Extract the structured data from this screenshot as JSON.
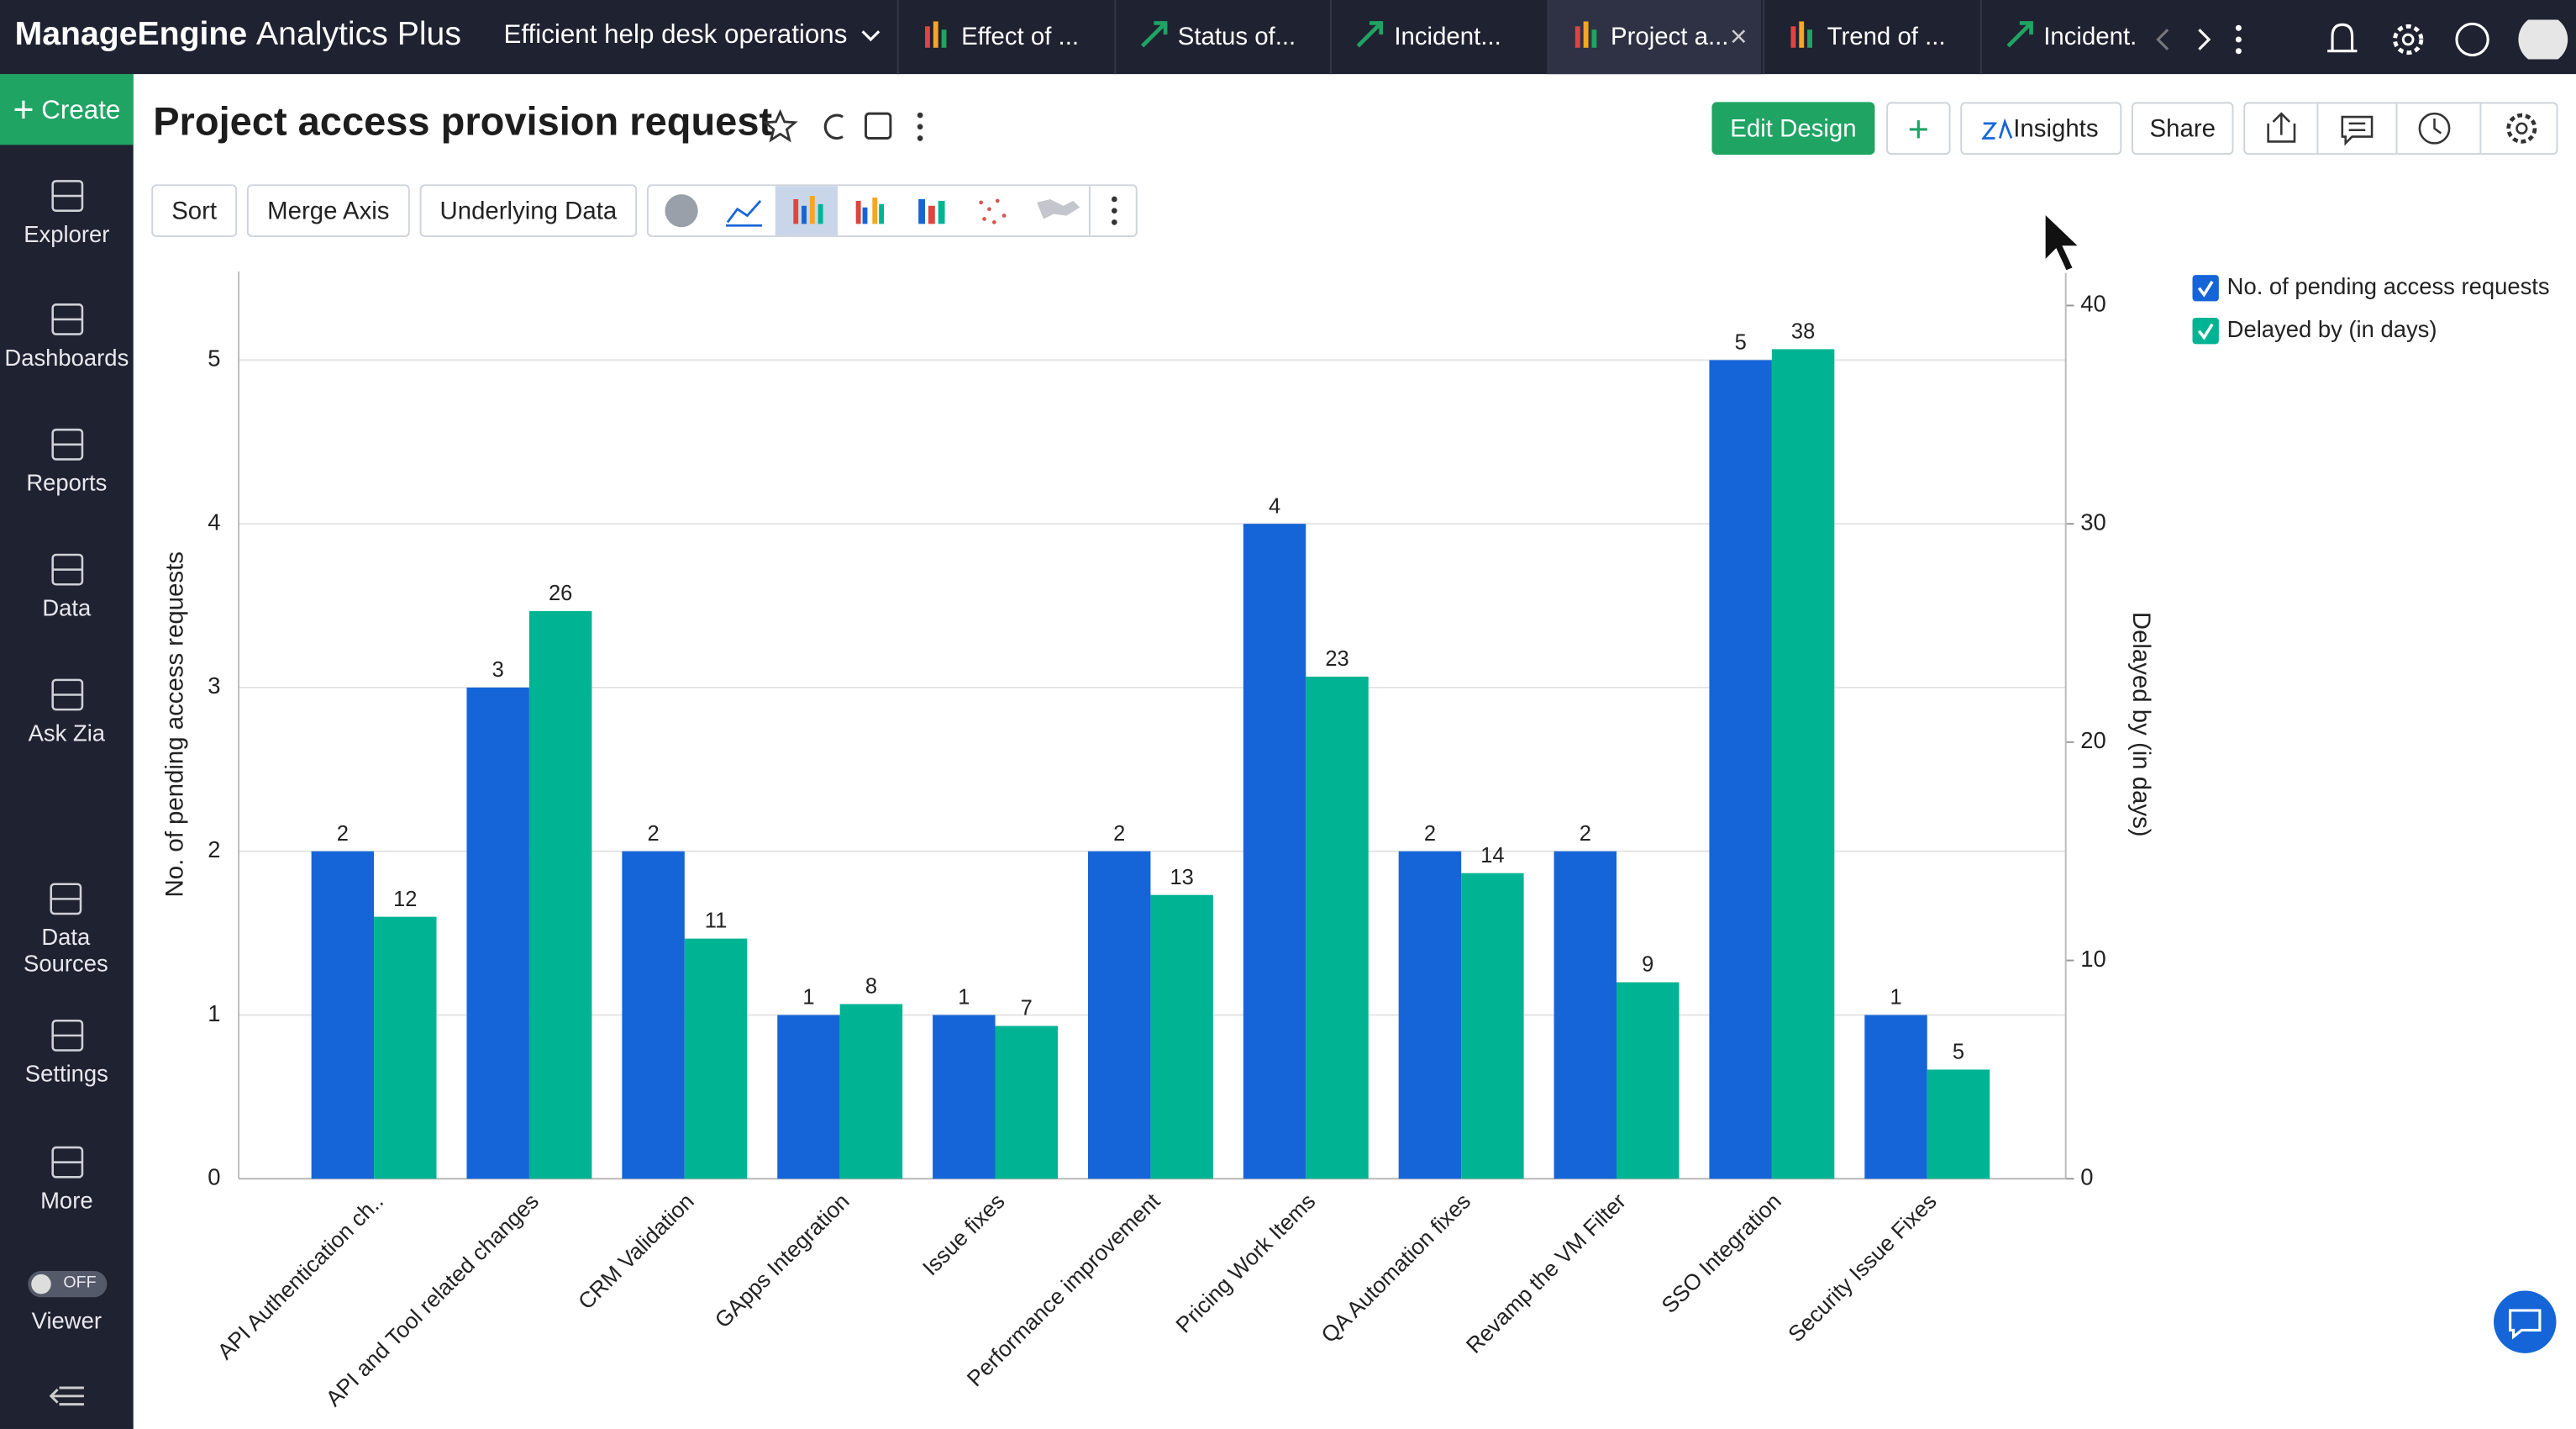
{
  "header": {
    "brand": "ManageEngine",
    "product": "Analytics Plus",
    "workspace": "Efficient help desk operations",
    "tabs": [
      "Effect of ...",
      "Status of...",
      "Incident...",
      "Project a...",
      "Trend of ...",
      "Incident."
    ]
  },
  "sidebar": {
    "create": "Create",
    "items": [
      "Explorer",
      "Dashboards",
      "Reports",
      "Data",
      "Ask Zia",
      "Data Sources",
      "Settings",
      "More"
    ],
    "toggle": "OFF",
    "viewer": "Viewer"
  },
  "report": {
    "title": "Project access provision request",
    "buttons": [
      "Edit Design",
      "Insights",
      "Share"
    ],
    "toolbar": [
      "Sort",
      "Merge Axis",
      "Underlying Data"
    ]
  },
  "chart_data": {
    "type": "bar",
    "y_label": "No. of pending access requests",
    "y2_label": "Delayed by (in days)",
    "categories": [
      "API Authentication ch..",
      "API and Tool related changes",
      "CRM Validation",
      "GApps Integration",
      "Issue fixes",
      "Performance improvement",
      "Pricing Work Items",
      "QA Automation fixes",
      "Revamp the VM Filter",
      "SSO Integration",
      "Security Issue Fixes"
    ],
    "series": [
      {
        "name": "No. of pending access requests",
        "color": "#1565d8",
        "values": [
          2,
          3,
          2,
          1,
          1,
          2,
          4,
          2,
          2,
          5,
          1
        ]
      },
      {
        "name": "Delayed by (in days)",
        "color": "#00b493",
        "axis": "y2",
        "values": [
          12,
          26,
          11,
          8,
          7,
          13,
          23,
          14,
          9,
          38,
          5
        ]
      }
    ],
    "ylim": [
      0,
      5.5
    ],
    "yticks": [
      0,
      1,
      2,
      3,
      4,
      5
    ],
    "y2lim": [
      0,
      41.25
    ],
    "y2ticks": [
      0,
      10,
      20,
      30,
      40
    ],
    "grid": true,
    "legend": "top-right"
  }
}
